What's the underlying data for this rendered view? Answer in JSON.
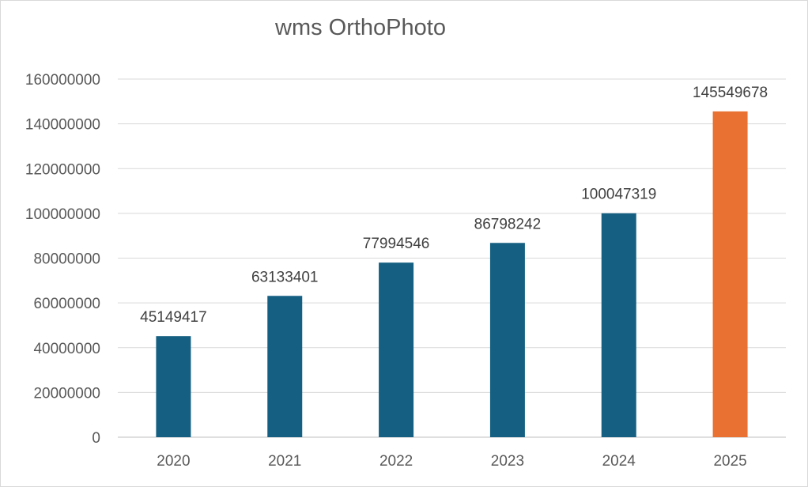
{
  "chart_data": {
    "type": "bar",
    "title": "wms OrthoPhoto",
    "xlabel": "",
    "ylabel": "",
    "categories": [
      "2020",
      "2021",
      "2022",
      "2023",
      "2024",
      "2025"
    ],
    "values": [
      45149417,
      63133401,
      77994546,
      86798242,
      100047319,
      145549678
    ],
    "data_labels": [
      "45149417",
      "63133401",
      "77994546",
      "86798242",
      "100047319",
      "145549678"
    ],
    "ylim": [
      0,
      160000000
    ],
    "yticks": [
      0,
      20000000,
      40000000,
      60000000,
      80000000,
      100000000,
      120000000,
      140000000,
      160000000
    ],
    "ytick_labels": [
      "0",
      "20000000",
      "40000000",
      "60000000",
      "80000000",
      "100000000",
      "120000000",
      "140000000",
      "160000000"
    ],
    "grid": true,
    "legend": "none",
    "colors": {
      "bar_default": "#156082",
      "bar_highlight": "#E97132",
      "gridline": "#d9d9d9",
      "axis": "#bfbfbf"
    },
    "highlight_index": 5
  }
}
